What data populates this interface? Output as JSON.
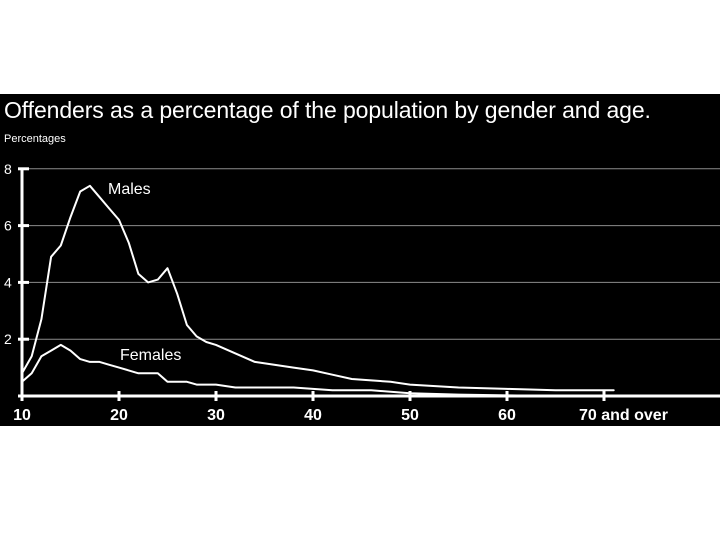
{
  "chart_data": {
    "type": "line",
    "title": "Offenders as a percentage of the population by gender and age.",
    "ylabel": "Percentages",
    "xlabel": "",
    "xlim": [
      10,
      80
    ],
    "ylim": [
      0,
      8
    ],
    "x_ticks": [
      {
        "value": 10,
        "label": "10"
      },
      {
        "value": 20,
        "label": "20"
      },
      {
        "value": 30,
        "label": "30"
      },
      {
        "value": 40,
        "label": "40"
      },
      {
        "value": 50,
        "label": "50"
      },
      {
        "value": 60,
        "label": "60"
      },
      {
        "value": 70,
        "label": "70 and over"
      }
    ],
    "y_ticks": [
      2,
      4,
      6,
      8
    ],
    "grid": true,
    "series": [
      {
        "name": "Males",
        "x": [
          10,
          11,
          12,
          13,
          14,
          15,
          16,
          17,
          18,
          19,
          20,
          21,
          22,
          23,
          24,
          25,
          26,
          27,
          28,
          29,
          30,
          32,
          34,
          36,
          38,
          40,
          42,
          44,
          46,
          48,
          50,
          55,
          60,
          65,
          70,
          71
        ],
        "y": [
          0.8,
          1.4,
          2.7,
          4.9,
          5.3,
          6.3,
          7.2,
          7.4,
          7.0,
          6.6,
          6.2,
          5.4,
          4.3,
          4.0,
          4.1,
          4.5,
          3.6,
          2.5,
          2.1,
          1.9,
          1.8,
          1.5,
          1.2,
          1.1,
          1.0,
          0.9,
          0.75,
          0.6,
          0.55,
          0.5,
          0.4,
          0.3,
          0.25,
          0.2,
          0.2,
          0.2
        ]
      },
      {
        "name": "Females",
        "x": [
          10,
          11,
          12,
          13,
          14,
          15,
          16,
          17,
          18,
          19,
          20,
          21,
          22,
          23,
          24,
          25,
          26,
          27,
          28,
          29,
          30,
          32,
          34,
          36,
          38,
          40,
          42,
          44,
          46,
          48,
          50,
          55,
          60,
          65,
          70,
          71
        ],
        "y": [
          0.5,
          0.8,
          1.4,
          1.6,
          1.8,
          1.6,
          1.3,
          1.2,
          1.2,
          1.1,
          1.0,
          0.9,
          0.8,
          0.8,
          0.8,
          0.5,
          0.5,
          0.5,
          0.4,
          0.4,
          0.4,
          0.3,
          0.3,
          0.3,
          0.3,
          0.25,
          0.2,
          0.2,
          0.2,
          0.15,
          0.1,
          0.05,
          0.02,
          0.0,
          0.0,
          0.0
        ]
      }
    ],
    "colors": {
      "background": "#000000",
      "foreground": "#ffffff",
      "grid": "#8c8c8c"
    }
  }
}
